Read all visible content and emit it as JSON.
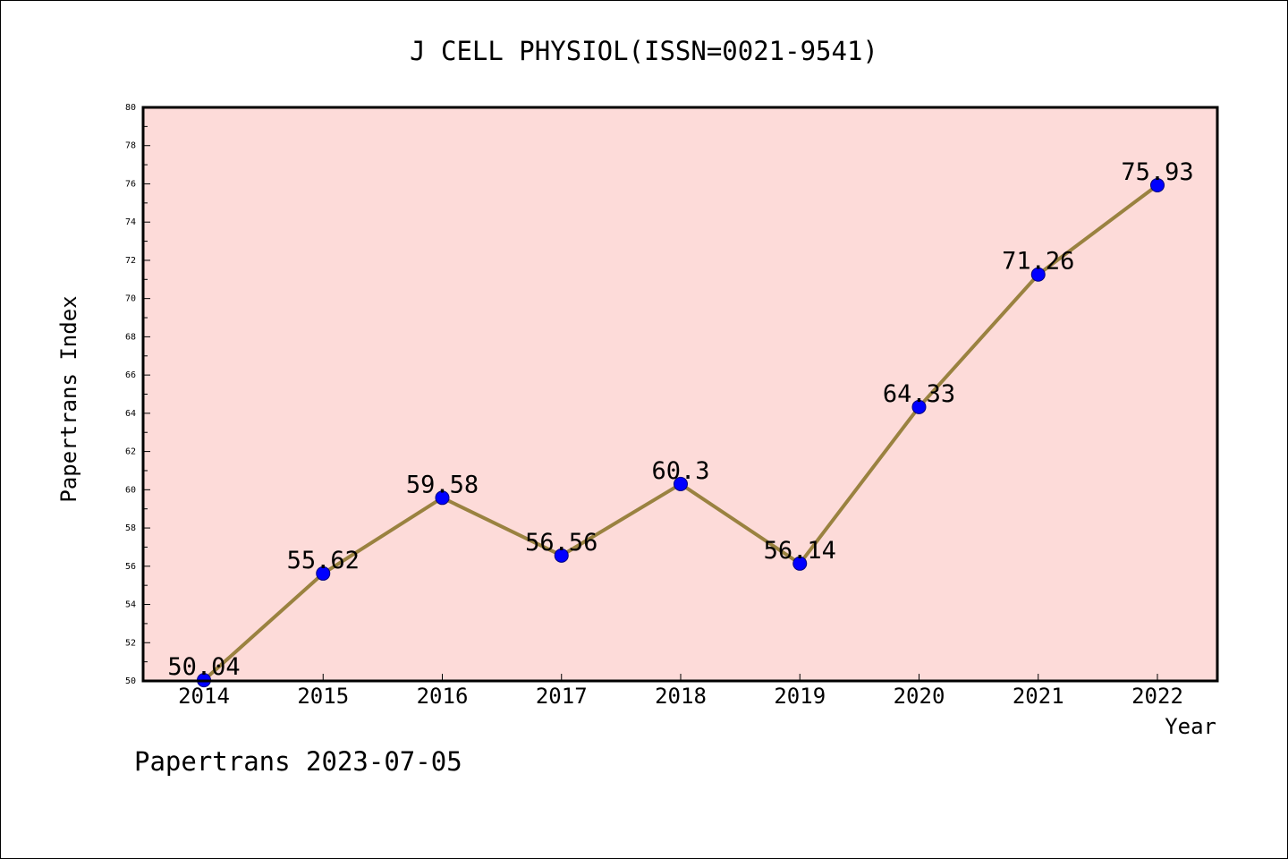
{
  "chart_data": {
    "type": "line",
    "title": "J CELL PHYSIOL(ISSN=0021-9541)",
    "xlabel": "Year",
    "ylabel": "Papertrans Index",
    "x": [
      "2014",
      "2015",
      "2016",
      "2017",
      "2018",
      "2019",
      "2020",
      "2021",
      "2022"
    ],
    "values": [
      50.04,
      55.62,
      59.58,
      56.56,
      60.3,
      56.14,
      64.33,
      71.26,
      75.93
    ],
    "data_labels": [
      "50.04",
      "55.62",
      "59.58",
      "56.56",
      "60.3",
      "56.14",
      "64.33",
      "71.26",
      "75.93"
    ],
    "ylim": [
      50,
      80
    ],
    "yticks": [
      "50",
      "52",
      "54",
      "56",
      "58",
      "60",
      "62",
      "64",
      "66",
      "68",
      "70",
      "72",
      "74",
      "76",
      "78",
      "80"
    ],
    "grid": false,
    "legend": "none",
    "colors": {
      "plot_background": "#fddbd9",
      "line": "#9a8240",
      "marker": "#0000ff",
      "marker_edge": "#000080",
      "axes": "#000000"
    }
  },
  "footer": {
    "text": "Papertrans 2023-07-05"
  }
}
